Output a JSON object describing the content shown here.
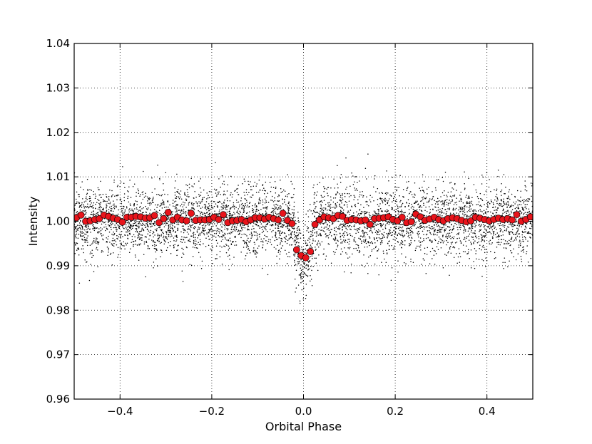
{
  "chart_data": {
    "type": "scatter",
    "title": "",
    "xlabel": "Orbital Phase",
    "ylabel": "Intensity",
    "xlim": [
      -0.5,
      0.5
    ],
    "ylim": [
      0.96,
      1.04
    ],
    "xticks": [
      -0.4,
      -0.2,
      0.0,
      0.2,
      0.4
    ],
    "xtick_labels": [
      "−0.4",
      "−0.2",
      "0.0",
      "0.2",
      "0.4"
    ],
    "yticks": [
      0.96,
      0.97,
      0.98,
      0.99,
      1.0,
      1.01,
      1.02,
      1.03,
      1.04
    ],
    "ytick_labels": [
      "0.96",
      "0.97",
      "0.98",
      "0.99",
      "1.00",
      "1.01",
      "1.02",
      "1.03",
      "1.04"
    ],
    "grid": true,
    "grid_style": "dotted",
    "colors": {
      "raw_points": "#000000",
      "binned_points": "#e8141b",
      "binned_edge": "#000000"
    },
    "raw_scatter": {
      "description_kind": "dense per-exposure measurements",
      "baseline": 1.0,
      "scatter_sigma": 0.004,
      "transit_center": 0.0,
      "transit_depth": 0.009,
      "transit_halfwidth": 0.02
    },
    "binned": {
      "x": [
        -0.495,
        -0.485,
        -0.475,
        -0.465,
        -0.455,
        -0.445,
        -0.435,
        -0.425,
        -0.415,
        -0.405,
        -0.395,
        -0.385,
        -0.375,
        -0.365,
        -0.355,
        -0.345,
        -0.335,
        -0.325,
        -0.315,
        -0.305,
        -0.295,
        -0.285,
        -0.275,
        -0.265,
        -0.255,
        -0.245,
        -0.235,
        -0.225,
        -0.215,
        -0.205,
        -0.195,
        -0.185,
        -0.175,
        -0.165,
        -0.155,
        -0.145,
        -0.135,
        -0.125,
        -0.115,
        -0.105,
        -0.095,
        -0.085,
        -0.075,
        -0.065,
        -0.055,
        -0.045,
        -0.035,
        -0.025,
        -0.015,
        -0.005,
        0.005,
        0.015,
        0.025,
        0.035,
        0.045,
        0.055,
        0.065,
        0.075,
        0.085,
        0.095,
        0.105,
        0.115,
        0.125,
        0.135,
        0.145,
        0.155,
        0.165,
        0.175,
        0.185,
        0.195,
        0.205,
        0.215,
        0.225,
        0.235,
        0.245,
        0.255,
        0.265,
        0.275,
        0.285,
        0.295,
        0.305,
        0.315,
        0.325,
        0.335,
        0.345,
        0.355,
        0.365,
        0.375,
        0.385,
        0.395,
        0.405,
        0.415,
        0.425,
        0.435,
        0.445,
        0.455,
        0.465,
        0.475,
        0.485,
        0.495
      ],
      "y": [
        1.0008,
        1.0014,
        1.0,
        1.0001,
        1.0004,
        1.0006,
        1.0014,
        1.0011,
        1.0007,
        1.0004,
        0.9998,
        1.0009,
        1.0009,
        1.0011,
        1.001,
        1.0007,
        1.0008,
        1.0013,
        0.9997,
        1.0006,
        1.002,
        1.0003,
        1.0009,
        1.0003,
        1.0001,
        1.0018,
        1.0002,
        1.0003,
        1.0003,
        1.0004,
        1.0009,
        1.0004,
        1.0015,
        0.9997,
        1.0001,
        1.0002,
        1.0004,
        0.9999,
        1.0003,
        1.0008,
        1.0008,
        1.0005,
        1.0009,
        1.0006,
        1.0003,
        1.0018,
        1.0002,
        0.9995,
        0.9936,
        0.9923,
        0.9918,
        0.9932,
        0.9993,
        1.0003,
        1.001,
        1.0008,
        1.0006,
        1.0013,
        1.0011,
        1.0002,
        1.0004,
        1.0003,
        1.0001,
        1.0003,
        0.9993,
        1.0006,
        1.0007,
        1.0008,
        1.001,
        1.0004,
        1.0001,
        1.0009,
        0.9997,
        0.9999,
        1.0016,
        1.001,
        1.0002,
        1.0005,
        1.0009,
        1.0004,
        1.0001,
        1.0006,
        1.0008,
        1.0006,
        1.0002,
        0.9999,
        1.0001,
        1.0009,
        1.0007,
        1.0004,
        1.0001,
        1.0004,
        1.0007,
        1.0004,
        1.0006,
        1.0003,
        1.0015,
        1.0,
        1.0004,
        1.001
      ]
    }
  }
}
